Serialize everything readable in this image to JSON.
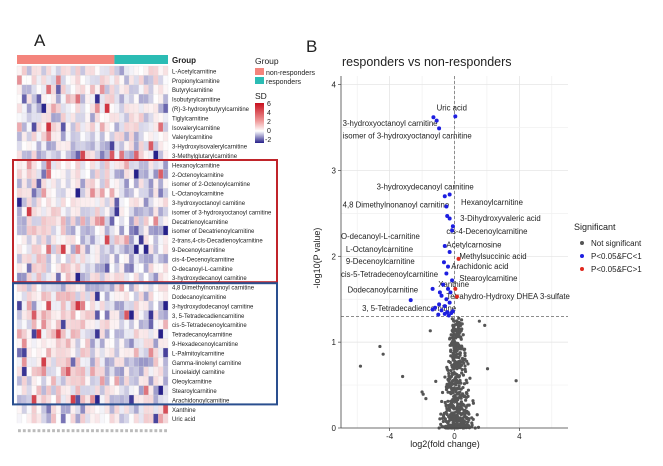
{
  "panel_a_letter": "A",
  "panel_b_letter": "B",
  "colors": {
    "non_responders": "#f4847c",
    "responders": "#2bbcb4",
    "high": "#c8101e",
    "mid": "#ffffff",
    "low": "#27218a",
    "box_red": "#c0242a",
    "box_blue": "#2a4f8f",
    "not_sig": "#555555",
    "sig_blue": "#1d1ee0",
    "sig_red": "#e0291f"
  },
  "heatmap": {
    "group_label": "Group",
    "legend_group_title": "Group",
    "legend_groups": [
      "non-responders",
      "responders"
    ],
    "legend_sd_title": "SD",
    "sd_ticks": [
      "6",
      "4",
      "2",
      "0",
      "-2"
    ],
    "rows": [
      "L-Acetylcarnitine",
      "Propionylcarnitine",
      "Butyrylcarnitine",
      "Isobutyrylcarnitine",
      "(R)-3-hydroxybutyrylcarnitine",
      "Tiglylcarnitine",
      "Isovalerylcarnitine",
      "Valerylcarnitine",
      "3-Hydroxyisovalerylcarnitine",
      "3-Methylglutarylcarnitine",
      "Hexanoylcarnitine",
      "2-Octenoylcarnitine",
      "isomer of 2-Octenoylcarnitine",
      "L-Octanoylcarnitine",
      "3-hydroxyoctanoyl carnitine",
      "isomer of 3-hydroxyoctanoyl carnitine",
      "Decatrienoylcarnitine",
      "isomer of Decatrienoylcarnitine",
      "2-trans,4-cis-Decadienoylcarnitine",
      "9-Decenoylcarnitine",
      "cis-4-Decenoylcarnitine",
      "O-decanoyl-L-carnitine",
      "3-hydroxydecanoyl carnitine",
      "4,8 Dimethylnonanoyl carnitine",
      "Dodecanoylcarnitine",
      "3-hydroxydodecanoyl carnitine",
      "3, 5-Tetradecadiencarnitine",
      "cis-5-Tetradecenoylcarnitine",
      "Tetradecanoylcarnitine",
      "9-Hexadecenoylcarnitine",
      "L-Palmitoylcarnitine",
      "Gamma-linolenyl carnitine",
      "Linoelaidyl carnitine",
      "Oleoylcarnitine",
      "Stearoylcarnitine",
      "Arachidonoylcarnitine",
      "Xanthine",
      "Uric acid"
    ],
    "n_nonresponders": 20,
    "n_responders": 11
  },
  "chart_data": {
    "type": "scatter",
    "title": "responders vs non-responders",
    "xlabel": "log2(fold change)",
    "ylabel": "-log10(P value)",
    "xlim": [
      -7,
      7
    ],
    "ylim": [
      0,
      4.1
    ],
    "xticks": [
      -4,
      0,
      4
    ],
    "yticks": [
      0,
      1,
      2,
      3,
      4
    ],
    "threshold_x": 0,
    "threshold_y": 1.3,
    "legend_title": "Significant",
    "legend_entries": [
      "Not significant",
      "P<0.05&FC<1",
      "P<0.05&FC>1"
    ],
    "significant_blue": [
      {
        "x": 0.05,
        "y": 3.63
      },
      {
        "x": -1.3,
        "y": 3.62
      },
      {
        "x": -1.1,
        "y": 3.58
      },
      {
        "x": -0.95,
        "y": 3.49
      },
      {
        "x": -0.3,
        "y": 2.72
      },
      {
        "x": -0.6,
        "y": 2.7
      },
      {
        "x": -0.5,
        "y": 2.58
      },
      {
        "x": -0.45,
        "y": 2.47
      },
      {
        "x": -0.3,
        "y": 2.44
      },
      {
        "x": -0.1,
        "y": 2.35
      },
      {
        "x": -0.15,
        "y": 2.3
      },
      {
        "x": -0.6,
        "y": 2.12
      },
      {
        "x": -0.3,
        "y": 2.05
      },
      {
        "x": -0.65,
        "y": 1.93
      },
      {
        "x": -0.4,
        "y": 1.88
      },
      {
        "x": -0.5,
        "y": 1.8
      },
      {
        "x": -0.15,
        "y": 1.72
      },
      {
        "x": -0.7,
        "y": 1.67
      },
      {
        "x": -0.4,
        "y": 1.62
      },
      {
        "x": -0.25,
        "y": 1.58
      },
      {
        "x": -0.8,
        "y": 1.54
      },
      {
        "x": -0.5,
        "y": 1.5
      },
      {
        "x": -0.3,
        "y": 1.46
      },
      {
        "x": -0.95,
        "y": 1.44
      },
      {
        "x": -0.6,
        "y": 1.42
      },
      {
        "x": -1.2,
        "y": 1.4
      },
      {
        "x": -1.35,
        "y": 1.38
      },
      {
        "x": -0.8,
        "y": 1.37
      },
      {
        "x": -0.45,
        "y": 1.35
      },
      {
        "x": -0.2,
        "y": 1.34
      },
      {
        "x": -0.6,
        "y": 1.33
      },
      {
        "x": -1.0,
        "y": 1.32
      },
      {
        "x": -0.1,
        "y": 1.36
      },
      {
        "x": -0.35,
        "y": 1.31
      },
      {
        "x": -2.7,
        "y": 1.49
      },
      {
        "x": -1.35,
        "y": 1.62
      },
      {
        "x": -0.9,
        "y": 1.58
      }
    ],
    "significant_red": [
      {
        "x": 0.25,
        "y": 1.97
      },
      {
        "x": 0.05,
        "y": 1.62
      },
      {
        "x": 0.15,
        "y": 1.53
      }
    ],
    "annotations": [
      {
        "text": "Uric acid",
        "x": -1.1,
        "y": 3.7
      },
      {
        "text": "3-hydroxyoctanoyl carnitine",
        "x": -6.9,
        "y": 3.52
      },
      {
        "text": "isomer of 3-hydroxyoctanoyl carnitine",
        "x": -6.9,
        "y": 3.37
      },
      {
        "text": "3-hydroxydecanoyl carnitine",
        "x": -4.8,
        "y": 2.78
      },
      {
        "text": "Hexanoylcarnitine",
        "x": 0.4,
        "y": 2.6
      },
      {
        "text": "4,8 Dimethylnonanoyl carnitine",
        "x": -6.9,
        "y": 2.57
      },
      {
        "text": "3-Dihydroxyvaleric acid",
        "x": 0.35,
        "y": 2.41
      },
      {
        "text": "cis-4-Decenoylcarnitine",
        "x": -0.5,
        "y": 2.26
      },
      {
        "text": "O-decanoyl-L-carnitine",
        "x": -7.0,
        "y": 2.2
      },
      {
        "text": "Acetylcarnosine",
        "x": -0.5,
        "y": 2.1
      },
      {
        "text": "L-Octanoylcarnitine",
        "x": -6.7,
        "y": 2.05
      },
      {
        "text": "Methylsuccinic acid",
        "x": 0.3,
        "y": 1.97
      },
      {
        "text": "9-Decenoylcarnitine",
        "x": -6.7,
        "y": 1.91
      },
      {
        "text": "Arachidonic acid",
        "x": -0.2,
        "y": 1.85
      },
      {
        "text": "cis-5-Tetradecenoylcarnitine",
        "x": -7.0,
        "y": 1.76
      },
      {
        "text": "Stearoylcarnitine",
        "x": 0.3,
        "y": 1.71
      },
      {
        "text": "Xanthine",
        "x": -1.0,
        "y": 1.64
      },
      {
        "text": "Dodecanoylcarnitine",
        "x": -6.6,
        "y": 1.58
      },
      {
        "text": "Tetrahydro-Hydroxy DHEA 3-sulfate",
        "x": -0.5,
        "y": 1.5
      },
      {
        "text": "3, 5-Tetradecadiencarnitine",
        "x": -5.7,
        "y": 1.36
      }
    ]
  }
}
